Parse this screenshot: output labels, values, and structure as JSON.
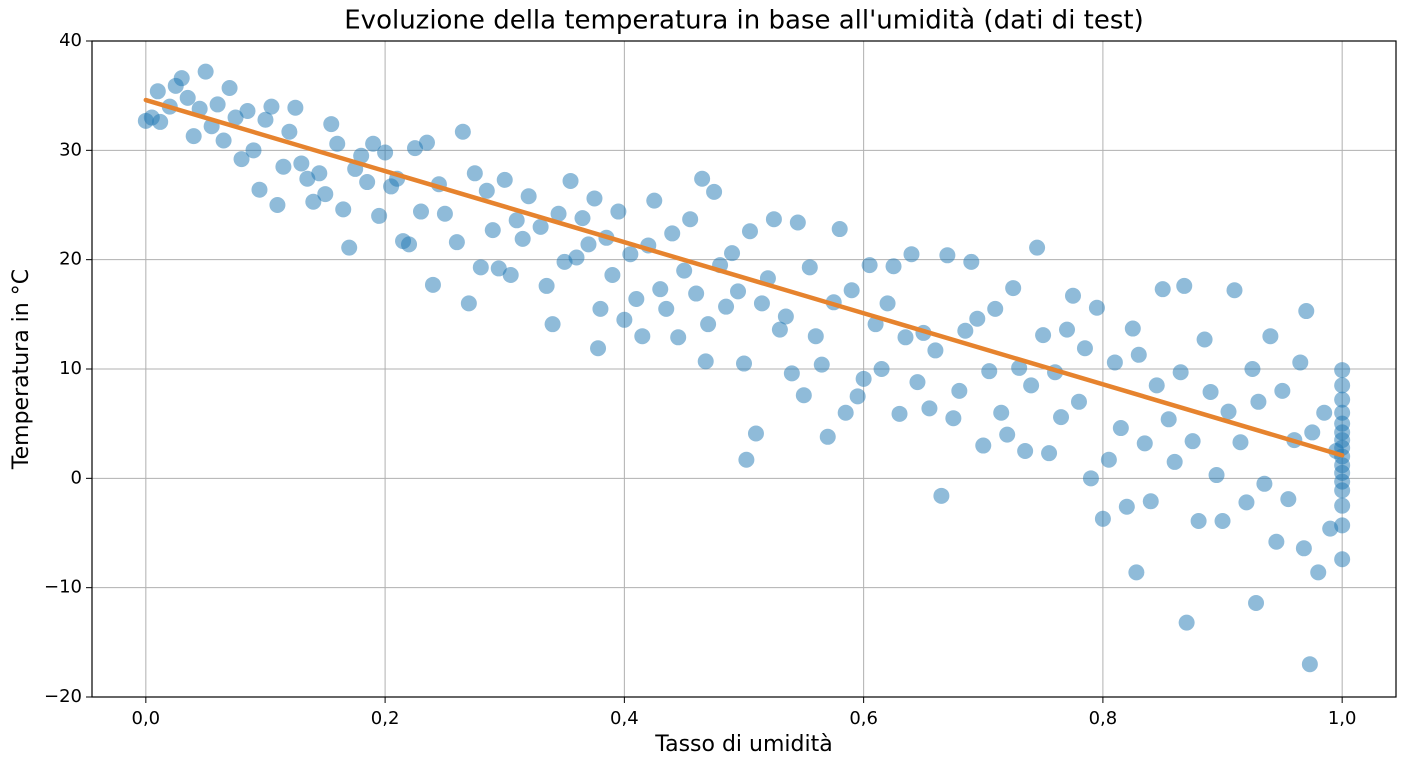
{
  "chart_data": {
    "type": "scatter",
    "title": "Evoluzione della temperatura in base all'umidità (dati di test)",
    "x_label": "Tasso di umidità",
    "y_label": "Temperatura in °C",
    "xlim": [
      -0.045,
      1.045
    ],
    "ylim": [
      -20,
      40
    ],
    "xticks": [
      {
        "value": 0,
        "label": "0,0"
      },
      {
        "value": 0.2,
        "label": "0,2"
      },
      {
        "value": 0.4,
        "label": "0,4"
      },
      {
        "value": 0.6,
        "label": "0,6"
      },
      {
        "value": 0.8,
        "label": "0,8"
      },
      {
        "value": 1,
        "label": "1,0"
      }
    ],
    "yticks": [
      {
        "value": -20,
        "label": "−20"
      },
      {
        "value": -10,
        "label": "−10"
      },
      0,
      10,
      20,
      30,
      40
    ],
    "grid": true,
    "series": [
      {
        "type": "scatter",
        "color": "#1f77b4",
        "x": [
          0.0,
          0.005,
          0.01,
          0.012,
          0.02,
          0.025,
          0.03,
          0.035,
          0.04,
          0.045,
          0.05,
          0.055,
          0.06,
          0.065,
          0.07,
          0.075,
          0.08,
          0.085,
          0.09,
          0.095,
          0.1,
          0.105,
          0.11,
          0.115,
          0.12,
          0.125,
          0.13,
          0.135,
          0.14,
          0.145,
          0.15,
          0.155,
          0.16,
          0.165,
          0.17,
          0.175,
          0.18,
          0.185,
          0.19,
          0.195,
          0.2,
          0.205,
          0.21,
          0.215,
          0.22,
          0.225,
          0.23,
          0.235,
          0.24,
          0.245,
          0.25,
          0.26,
          0.265,
          0.27,
          0.275,
          0.28,
          0.285,
          0.29,
          0.295,
          0.3,
          0.305,
          0.31,
          0.315,
          0.32,
          0.33,
          0.335,
          0.34,
          0.345,
          0.35,
          0.355,
          0.36,
          0.365,
          0.37,
          0.375,
          0.378,
          0.38,
          0.385,
          0.39,
          0.395,
          0.4,
          0.405,
          0.41,
          0.415,
          0.42,
          0.425,
          0.43,
          0.435,
          0.44,
          0.445,
          0.45,
          0.455,
          0.46,
          0.465,
          0.468,
          0.47,
          0.475,
          0.48,
          0.485,
          0.49,
          0.495,
          0.5,
          0.502,
          0.505,
          0.51,
          0.515,
          0.52,
          0.525,
          0.53,
          0.535,
          0.54,
          0.545,
          0.55,
          0.555,
          0.56,
          0.565,
          0.57,
          0.575,
          0.58,
          0.585,
          0.59,
          0.595,
          0.6,
          0.605,
          0.61,
          0.615,
          0.62,
          0.625,
          0.63,
          0.635,
          0.64,
          0.645,
          0.65,
          0.655,
          0.66,
          0.665,
          0.67,
          0.675,
          0.68,
          0.685,
          0.69,
          0.695,
          0.7,
          0.705,
          0.71,
          0.715,
          0.72,
          0.725,
          0.73,
          0.735,
          0.74,
          0.745,
          0.75,
          0.755,
          0.76,
          0.765,
          0.77,
          0.775,
          0.78,
          0.785,
          0.79,
          0.795,
          0.8,
          0.805,
          0.81,
          0.815,
          0.82,
          0.825,
          0.828,
          0.83,
          0.835,
          0.84,
          0.845,
          0.85,
          0.855,
          0.86,
          0.865,
          0.868,
          0.87,
          0.875,
          0.88,
          0.885,
          0.89,
          0.895,
          0.9,
          0.905,
          0.91,
          0.915,
          0.92,
          0.925,
          0.928,
          0.93,
          0.935,
          0.94,
          0.945,
          0.95,
          0.955,
          0.96,
          0.965,
          0.968,
          0.97,
          0.973,
          0.975,
          0.98,
          0.985,
          0.99,
          0.995,
          1.0,
          1.0,
          1.0,
          1.0,
          1.0,
          1.0,
          1.0,
          1.0,
          1.0,
          1.0,
          1.0,
          1.0,
          1.0,
          1.0,
          1.0,
          1.0
        ],
        "values": [
          32.7,
          33.0,
          35.4,
          32.6,
          34.0,
          35.9,
          36.6,
          34.8,
          31.3,
          33.8,
          37.2,
          32.2,
          34.2,
          30.9,
          35.7,
          33.0,
          29.2,
          33.6,
          30.0,
          26.4,
          32.8,
          34.0,
          25.0,
          28.5,
          31.7,
          33.9,
          28.8,
          27.4,
          25.3,
          27.9,
          26.0,
          32.4,
          30.6,
          24.6,
          21.1,
          28.3,
          29.5,
          27.1,
          30.6,
          24.0,
          29.8,
          26.7,
          27.4,
          21.7,
          21.4,
          30.2,
          24.4,
          30.7,
          17.7,
          26.9,
          24.2,
          21.6,
          31.7,
          16.0,
          27.9,
          19.3,
          26.3,
          22.7,
          19.2,
          27.3,
          18.6,
          23.6,
          21.9,
          25.8,
          23.0,
          17.6,
          14.1,
          24.2,
          19.8,
          27.2,
          20.2,
          23.8,
          21.4,
          25.6,
          11.9,
          15.5,
          22.0,
          18.6,
          24.4,
          14.5,
          20.5,
          16.4,
          13.0,
          21.3,
          25.4,
          17.3,
          15.5,
          22.4,
          12.9,
          19.0,
          23.7,
          16.9,
          27.4,
          10.7,
          14.1,
          26.2,
          19.5,
          15.7,
          20.6,
          17.1,
          10.5,
          1.7,
          22.6,
          4.1,
          16.0,
          18.3,
          23.7,
          13.6,
          14.8,
          9.6,
          23.4,
          7.6,
          19.3,
          13.0,
          10.4,
          3.8,
          16.1,
          22.8,
          6.0,
          17.2,
          7.5,
          9.1,
          19.5,
          14.1,
          10.0,
          16.0,
          19.4,
          5.9,
          12.9,
          20.5,
          8.8,
          13.3,
          6.4,
          11.7,
          -1.6,
          20.4,
          5.5,
          8.0,
          13.5,
          19.8,
          14.6,
          3.0,
          9.8,
          15.5,
          6.0,
          4.0,
          17.4,
          10.1,
          2.5,
          8.5,
          21.1,
          13.1,
          2.3,
          9.7,
          5.6,
          13.6,
          16.7,
          7.0,
          11.9,
          0.0,
          15.6,
          -3.7,
          1.7,
          10.6,
          4.6,
          -2.6,
          13.7,
          -8.6,
          11.3,
          3.2,
          -2.1,
          8.5,
          17.3,
          5.4,
          1.5,
          9.7,
          17.6,
          -13.2,
          3.4,
          -3.9,
          12.7,
          7.9,
          0.3,
          -3.9,
          6.1,
          17.2,
          3.3,
          -2.2,
          10.0,
          -11.4,
          7.0,
          -0.5,
          13.0,
          -5.8,
          8.0,
          -1.9,
          3.5,
          10.6,
          -6.4,
          15.3,
          -17.0,
          4.2,
          -8.6,
          6.0,
          -4.6,
          2.5,
          9.9,
          8.5,
          7.2,
          6.0,
          5.0,
          4.2,
          3.5,
          2.8,
          2.0,
          1.2,
          0.5,
          -0.3,
          -1.1,
          -2.5,
          -4.3,
          -7.4
        ]
      },
      {
        "type": "line",
        "color": "#e6832e",
        "x": [
          0,
          1
        ],
        "values": [
          34.6,
          2.1
        ]
      }
    ]
  }
}
